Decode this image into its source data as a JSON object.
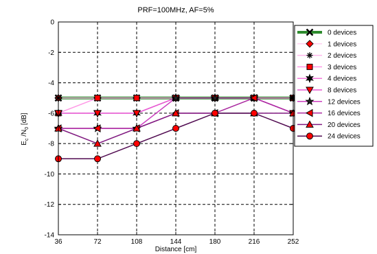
{
  "chart_data": {
    "type": "line",
    "title": "PRF=100MHz, AF=5%",
    "xlabel": "Distance [cm]",
    "ylabel_main": "E",
    "ylabel_sub1": "c",
    "ylabel_mid": " /N",
    "ylabel_sub2": "0",
    "ylabel_unit": " [dB]",
    "x": [
      36,
      72,
      108,
      144,
      180,
      216,
      252
    ],
    "xlim": [
      36,
      252
    ],
    "ylim": [
      -14,
      0
    ],
    "yticks": [
      0,
      -2,
      -4,
      -6,
      -8,
      -10,
      -12,
      -14
    ],
    "grid": true,
    "legend_position": "top-right-outside",
    "series": [
      {
        "name": "0 devices",
        "values": [
          -5,
          -5,
          -5,
          -5,
          -5,
          -5,
          -5
        ],
        "color": "#2e8b2e",
        "marker": "x-bold",
        "width": 4
      },
      {
        "name": "1 devices",
        "values": [
          -5,
          -5,
          -5,
          -5,
          -5,
          -5,
          -5
        ],
        "color": "#ffd0f0",
        "marker": "diamond",
        "width": 1.5
      },
      {
        "name": "2 devices",
        "values": [
          -5,
          -5,
          -5,
          -5,
          -5,
          -5,
          -5
        ],
        "color": "#ffb6ec",
        "marker": "asterisk",
        "width": 1.5
      },
      {
        "name": "3 devices",
        "values": [
          -6,
          -5,
          -5,
          -5,
          -5,
          -5,
          -5
        ],
        "color": "#ff99e6",
        "marker": "square",
        "width": 1.5
      },
      {
        "name": "4 devices",
        "values": [
          -6,
          -6,
          -6,
          -5,
          -5,
          -5,
          -5
        ],
        "color": "#f577dc",
        "marker": "star6",
        "width": 1.5
      },
      {
        "name": "8 devices",
        "values": [
          -6,
          -6,
          -6,
          -5,
          -5,
          -5,
          -6
        ],
        "color": "#e65ad2",
        "marker": "tri-down",
        "width": 1.5
      },
      {
        "name": "12 devices",
        "values": [
          -7,
          -7,
          -7,
          -5,
          -5,
          -5,
          -6
        ],
        "color": "#cc3ec0",
        "marker": "star5",
        "width": 1.5
      },
      {
        "name": "16 devices",
        "values": [
          -7,
          -7,
          -7,
          -6,
          -6,
          -5,
          -6
        ],
        "color": "#aa2aa0",
        "marker": "tri-left",
        "width": 1.5
      },
      {
        "name": "20 devices",
        "values": [
          -7,
          -8,
          -7,
          -6,
          -6,
          -6,
          -6
        ],
        "color": "#801a80",
        "marker": "tri-up",
        "width": 1.5
      },
      {
        "name": "24 devices",
        "values": [
          -9,
          -9,
          -8,
          -7,
          -6,
          -6,
          -7
        ],
        "color": "#500a50",
        "marker": "circle",
        "width": 1.5
      }
    ]
  }
}
